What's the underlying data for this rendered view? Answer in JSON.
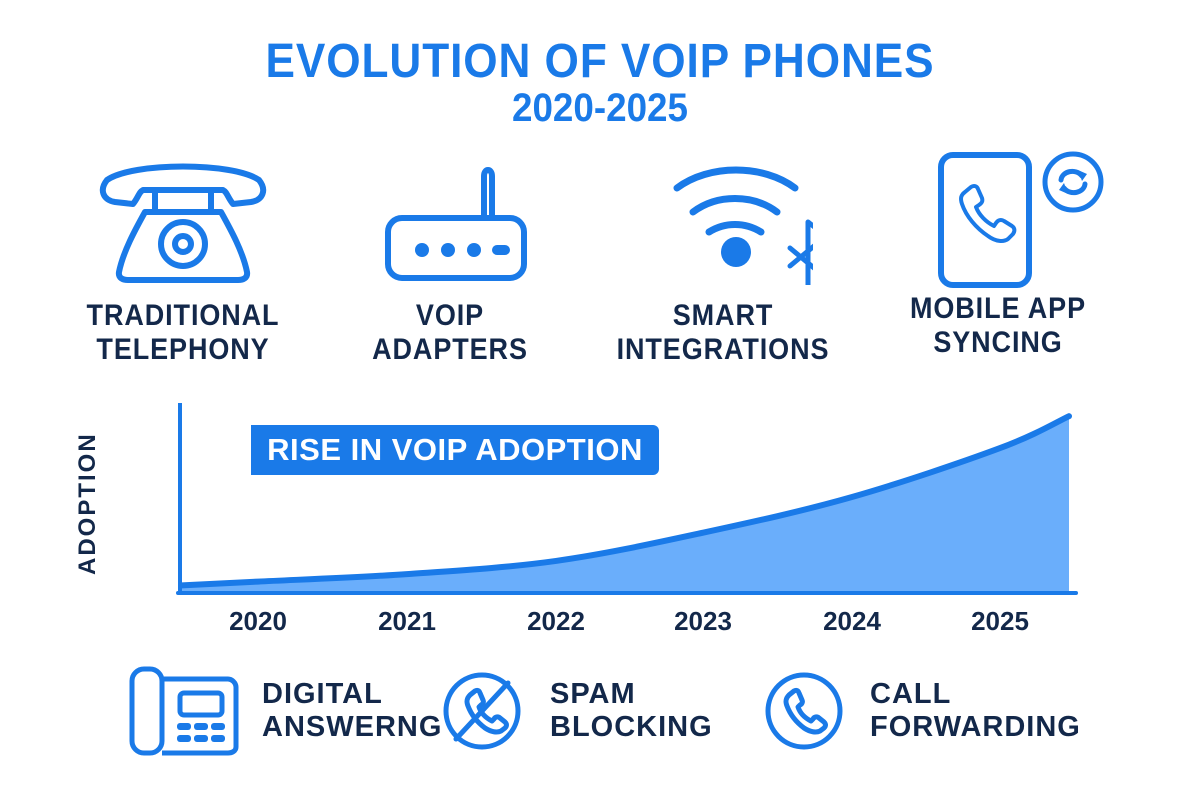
{
  "title": {
    "main": "EVOLUTION OF VOIP PHONES",
    "sub": "2020-2025"
  },
  "stages": [
    {
      "icon": "rotary-telephone-icon",
      "line1": "TRADITIONAL",
      "line2": "TELEPHONY"
    },
    {
      "icon": "router-adapter-icon",
      "line1": "VOIP",
      "line2": "ADAPTERS"
    },
    {
      "icon": "wifi-bluetooth-icon",
      "line1": "SMART",
      "line2": "INTEGRATIONS"
    },
    {
      "icon": "mobile-sync-icon",
      "line1": "MOBILE APP",
      "line2": "SYNCING"
    }
  ],
  "chart_data": {
    "type": "area",
    "title": "RISE IN VOIP ADOPTION",
    "xlabel": "",
    "ylabel": "ADOPTION",
    "categories": [
      "2020",
      "2021",
      "2022",
      "2023",
      "2024",
      "2025"
    ],
    "values": [
      5,
      9,
      16,
      31,
      50,
      76
    ],
    "series": [
      {
        "name": "Adoption",
        "values": [
          5,
          9,
          16,
          31,
          50,
          76
        ]
      }
    ],
    "end_value": 93,
    "ylim": [
      0,
      100
    ],
    "grid": false,
    "legend": "none",
    "y_tick_labels": false,
    "colors": {
      "line": "#1a7ae8",
      "fill": "#6aaefb",
      "axis": "#1a7ae8"
    }
  },
  "features": [
    {
      "icon": "desk-phone-icon",
      "line1": "DIGITAL",
      "line2": "ANSWERNG"
    },
    {
      "icon": "blocked-call-icon",
      "line1": "SPAM",
      "line2": "BLOCKING"
    },
    {
      "icon": "call-circle-icon",
      "line1": "CALL",
      "line2": "FORWARDING"
    }
  ],
  "colors": {
    "accent": "#1a7ae8",
    "text": "#13284a",
    "fill": "#6aaefb"
  }
}
